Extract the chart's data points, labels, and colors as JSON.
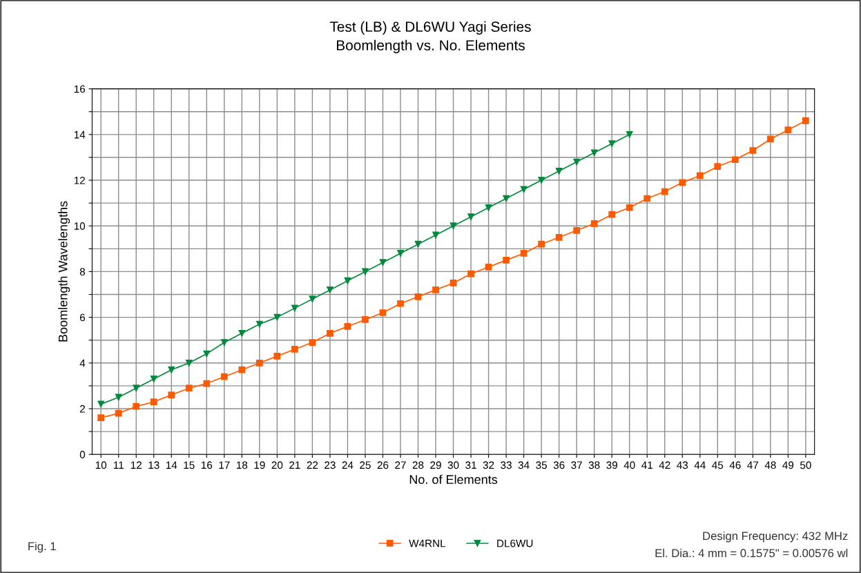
{
  "chart_data": {
    "type": "line",
    "title": "Test (LB) & DL6WU Yagi Series\nBoomlength vs. No. Elements",
    "xlabel": "No. of Elements",
    "ylabel": "Boomlength Wavelengths",
    "x": [
      10,
      11,
      12,
      13,
      14,
      15,
      16,
      17,
      18,
      19,
      20,
      21,
      22,
      23,
      24,
      25,
      26,
      27,
      28,
      29,
      30,
      31,
      32,
      33,
      34,
      35,
      36,
      37,
      38,
      39,
      40,
      41,
      42,
      43,
      44,
      45,
      46,
      47,
      48,
      49,
      50
    ],
    "series": [
      {
        "name": "W4RNL",
        "color": "#ff5a00",
        "marker": "square",
        "values": [
          1.6,
          1.8,
          2.1,
          2.3,
          2.6,
          2.9,
          3.1,
          3.4,
          3.7,
          4.0,
          4.3,
          4.6,
          4.9,
          5.3,
          5.6,
          5.9,
          6.2,
          6.6,
          6.9,
          7.2,
          7.5,
          7.9,
          8.2,
          8.5,
          8.8,
          9.2,
          9.5,
          9.8,
          10.1,
          10.5,
          10.8,
          11.2,
          11.5,
          11.9,
          12.2,
          12.6,
          12.9,
          13.3,
          13.8,
          14.2,
          14.6
        ]
      },
      {
        "name": "DL6WU",
        "color": "#008a3c",
        "marker": "triangle",
        "x": [
          10,
          11,
          12,
          13,
          14,
          15,
          16,
          17,
          18,
          19,
          20,
          21,
          22,
          23,
          24,
          25,
          26,
          27,
          28,
          29,
          30,
          31,
          32,
          33,
          34,
          35,
          36,
          37,
          38,
          39,
          40
        ],
        "values": [
          2.2,
          2.5,
          2.9,
          3.3,
          3.7,
          4.0,
          4.4,
          4.9,
          5.3,
          5.7,
          6.0,
          6.4,
          6.8,
          7.2,
          7.6,
          8.0,
          8.4,
          8.8,
          9.2,
          9.6,
          10.0,
          10.4,
          10.8,
          11.2,
          11.6,
          12.0,
          12.4,
          12.8,
          13.2,
          13.6,
          14.0
        ]
      }
    ],
    "xlim": [
      9.5,
      50.5
    ],
    "xticks": [
      10,
      11,
      12,
      13,
      14,
      15,
      16,
      17,
      18,
      19,
      20,
      21,
      22,
      23,
      24,
      25,
      26,
      27,
      28,
      29,
      30,
      31,
      32,
      33,
      34,
      35,
      36,
      37,
      38,
      39,
      40,
      41,
      42,
      43,
      44,
      45,
      46,
      47,
      48,
      49,
      50
    ],
    "ylim": [
      0,
      16
    ],
    "yticks": [
      0,
      {
        "value": 1,
        "label": null
      },
      2,
      {
        "value": 3,
        "label": null
      },
      4,
      {
        "value": 5,
        "label": null
      },
      6,
      {
        "value": 7,
        "label": null
      },
      8,
      {
        "value": 9,
        "label": null
      },
      10,
      {
        "value": 11,
        "label": null
      },
      12,
      {
        "value": 13,
        "label": null
      },
      14,
      {
        "value": 15,
        "label": null
      },
      16
    ],
    "grid": true,
    "legend": "bottom",
    "line_style": "solid",
    "annotations": [
      "Fig. 1",
      "Design Frequency: 432 MHz",
      "El. Dia.: 4 mm = 0.1575\" = 0.00576 wl"
    ]
  }
}
